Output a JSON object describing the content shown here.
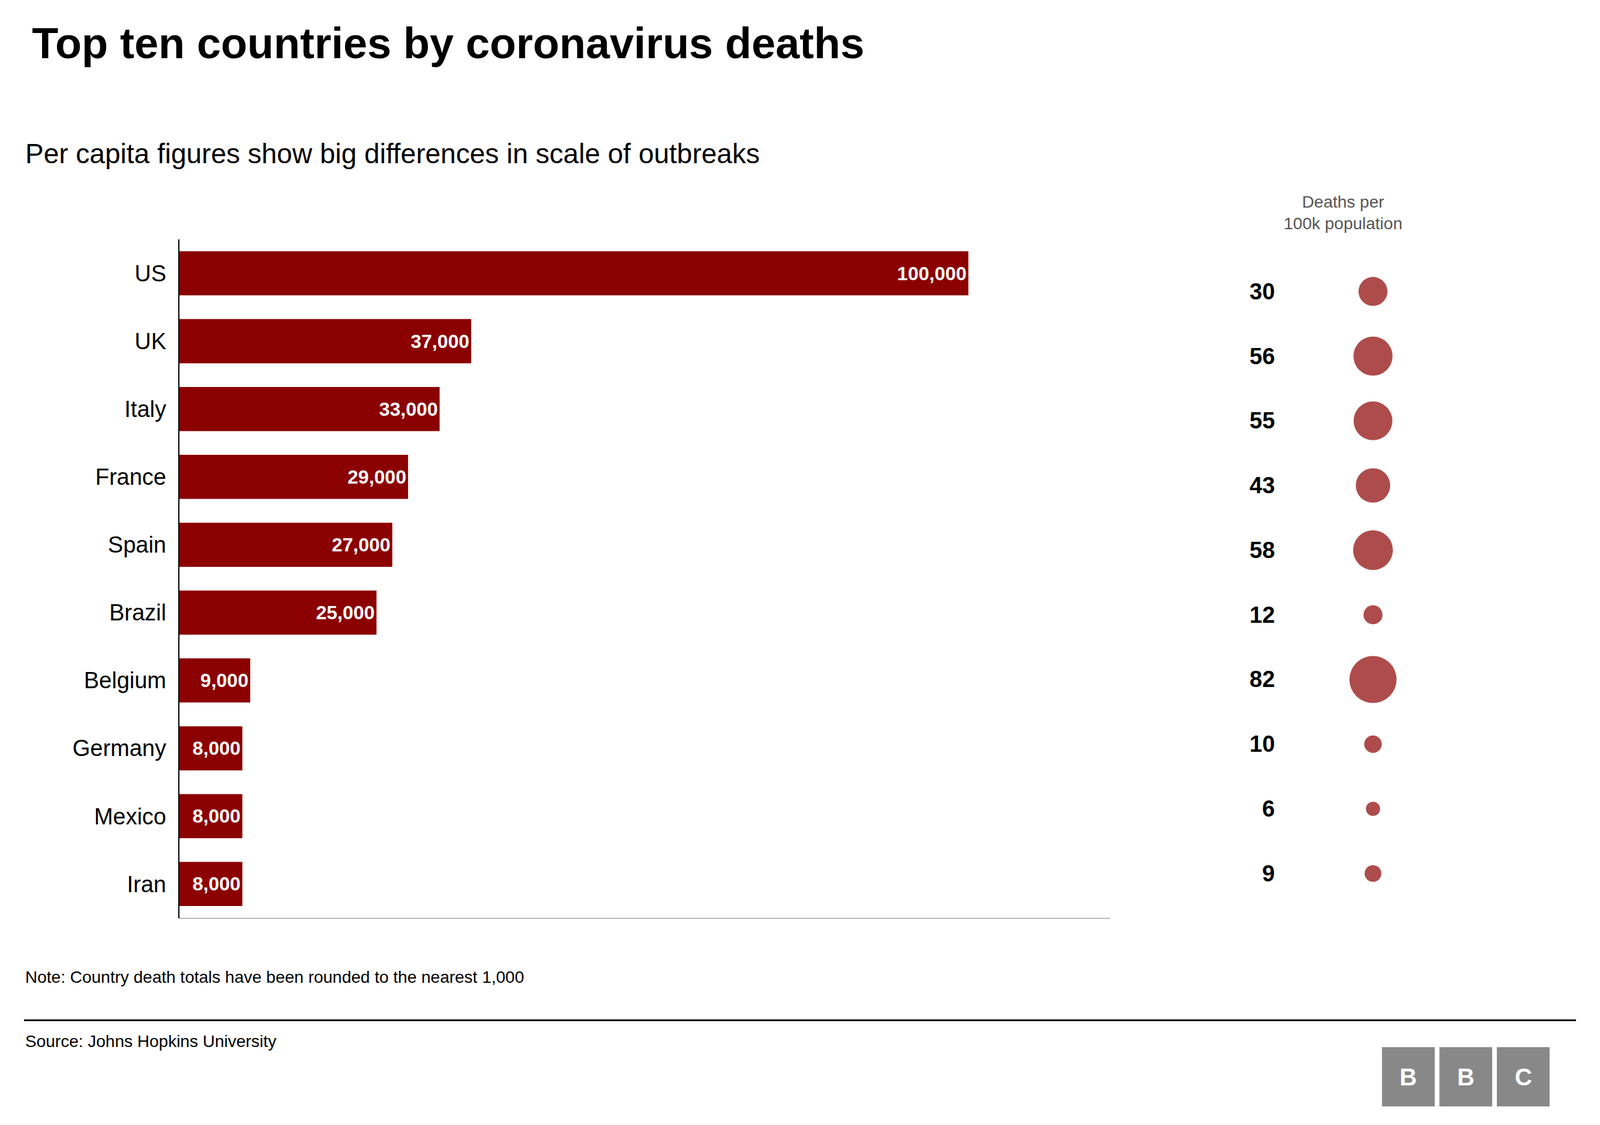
{
  "chart_data": [
    {
      "type": "bar",
      "title": "Top ten countries by coronavirus deaths",
      "subtitle": "Per capita figures show big differences in scale of outbreaks",
      "note": "Note: Country death totals have been rounded to the nearest 1,000",
      "source": "Source: Johns Hopkins University",
      "logo": "BBC",
      "orientation": "horizontal",
      "categories": [
        "US",
        "UK",
        "Italy",
        "France",
        "Spain",
        "Brazil",
        "Belgium",
        "Germany",
        "Mexico",
        "Iran"
      ],
      "values": [
        100000,
        37000,
        33000,
        29000,
        27000,
        25000,
        9000,
        8000,
        8000,
        8000
      ],
      "value_labels": [
        "100,000",
        "37,000",
        "33,000",
        "29,000",
        "27,000",
        "25,000",
        "9,000",
        "8,000",
        "8,000",
        "8,000"
      ],
      "data_labels": true,
      "color": "#8B0000",
      "xlim": [
        0,
        118000
      ],
      "grid": false,
      "tick_labels": "y"
    },
    {
      "type": "scatter",
      "title": "Deaths per\n100k population",
      "categories": [
        "US",
        "UK",
        "Italy",
        "France",
        "Spain",
        "Brazil",
        "Belgium",
        "Germany",
        "Mexico",
        "Iran"
      ],
      "values": [
        30,
        56,
        55,
        43,
        58,
        12,
        82,
        10,
        6,
        9
      ],
      "data_labels": true,
      "color": "#8B0000",
      "marker": "circle",
      "grid": false,
      "tick_labels": false
    }
  ]
}
